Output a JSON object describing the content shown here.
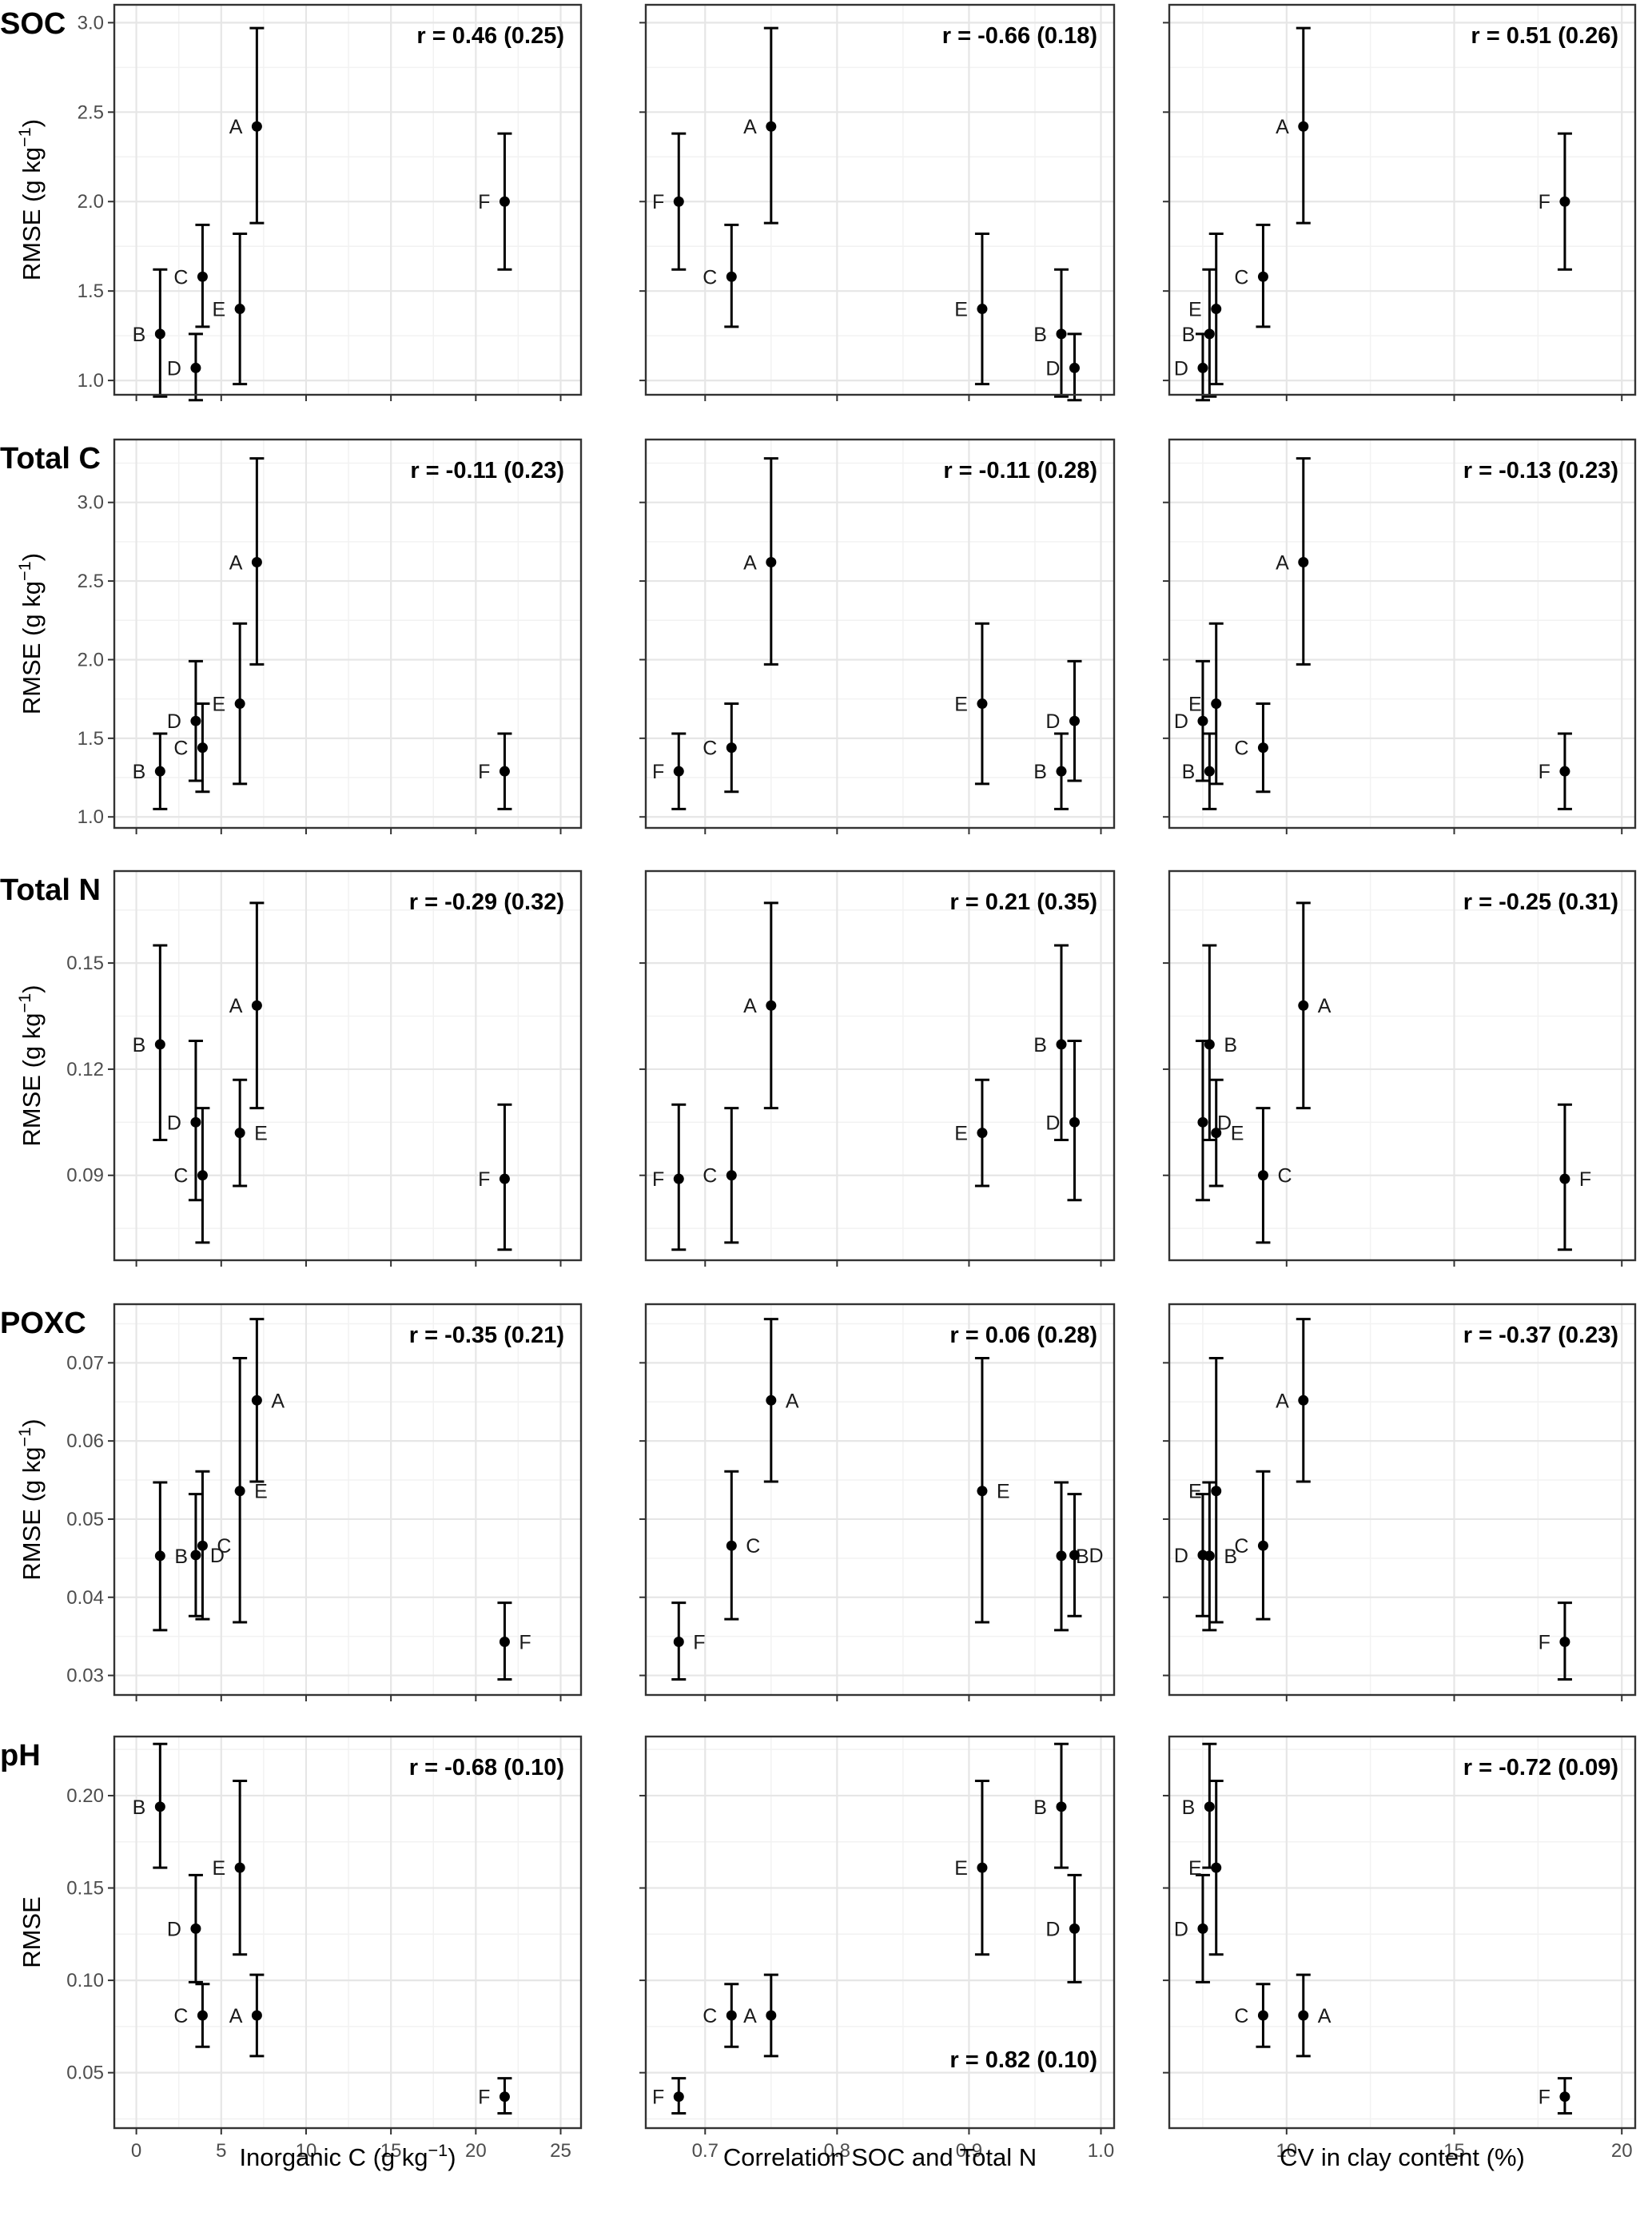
{
  "chart_data": {
    "type": "scatter",
    "rows": [
      {
        "label": "SOC",
        "ylabel": "RMSE (g kg-1)",
        "ylim": [
          0.92,
          3.1
        ],
        "yticks": [
          1.0,
          1.5,
          2.0,
          2.5,
          3.0
        ],
        "ytick_labels": [
          "1.0",
          "1.5",
          "2.0",
          "2.5",
          "3.0"
        ],
        "points": [
          {
            "id": "A",
            "y": 2.42,
            "lo": 1.88,
            "hi": 2.97
          },
          {
            "id": "B",
            "y": 1.26,
            "lo": 0.91,
            "hi": 1.62
          },
          {
            "id": "C",
            "y": 1.58,
            "lo": 1.3,
            "hi": 1.87
          },
          {
            "id": "D",
            "y": 1.07,
            "lo": 0.89,
            "hi": 1.26
          },
          {
            "id": "E",
            "y": 1.4,
            "lo": 0.98,
            "hi": 1.82
          },
          {
            "id": "F",
            "y": 2.0,
            "lo": 1.62,
            "hi": 2.38
          }
        ],
        "panels": [
          {
            "r": "r = 0.46 (0.25)",
            "r_pos": "top"
          },
          {
            "r": "r = -0.66 (0.18)",
            "r_pos": "top"
          },
          {
            "r": "r = 0.51 (0.26)",
            "r_pos": "top"
          }
        ]
      },
      {
        "label": "Total C",
        "ylabel": "RMSE (g kg-1)",
        "ylim": [
          0.93,
          3.4
        ],
        "yticks": [
          1.0,
          1.5,
          2.0,
          2.5,
          3.0
        ],
        "ytick_labels": [
          "1.0",
          "1.5",
          "2.0",
          "2.5",
          "3.0"
        ],
        "points": [
          {
            "id": "A",
            "y": 2.62,
            "lo": 1.97,
            "hi": 3.28
          },
          {
            "id": "B",
            "y": 1.29,
            "lo": 1.05,
            "hi": 1.53
          },
          {
            "id": "C",
            "y": 1.44,
            "lo": 1.16,
            "hi": 1.72
          },
          {
            "id": "D",
            "y": 1.61,
            "lo": 1.23,
            "hi": 1.99
          },
          {
            "id": "E",
            "y": 1.72,
            "lo": 1.21,
            "hi": 2.23
          },
          {
            "id": "F",
            "y": 1.29,
            "lo": 1.05,
            "hi": 1.53
          }
        ],
        "panels": [
          {
            "r": "r = -0.11 (0.23)",
            "r_pos": "top"
          },
          {
            "r": "r = -0.11 (0.28)",
            "r_pos": "top"
          },
          {
            "r": "r = -0.13 (0.23)",
            "r_pos": "top"
          }
        ]
      },
      {
        "label": "Total N",
        "ylabel": "RMSE (g kg-1)",
        "ylim": [
          0.066,
          0.176
        ],
        "yticks": [
          0.09,
          0.12,
          0.15
        ],
        "ytick_labels": [
          "0.09",
          "0.12",
          "0.15"
        ],
        "points": [
          {
            "id": "A",
            "y": 0.138,
            "lo": 0.109,
            "hi": 0.167
          },
          {
            "id": "B",
            "y": 0.127,
            "lo": 0.1,
            "hi": 0.155
          },
          {
            "id": "C",
            "y": 0.09,
            "lo": 0.071,
            "hi": 0.109
          },
          {
            "id": "D",
            "y": 0.105,
            "lo": 0.083,
            "hi": 0.128
          },
          {
            "id": "E",
            "y": 0.102,
            "lo": 0.087,
            "hi": 0.117
          },
          {
            "id": "F",
            "y": 0.089,
            "lo": 0.069,
            "hi": 0.11
          }
        ],
        "panels": [
          {
            "r": "r = -0.29 (0.32)",
            "r_pos": "top"
          },
          {
            "r": "r = 0.21 (0.35)",
            "r_pos": "top"
          },
          {
            "r": "r = -0.25 (0.31)",
            "r_pos": "top"
          }
        ]
      },
      {
        "label": "POXC",
        "ylabel": "RMSE (g kg-1)",
        "ylim": [
          0.0275,
          0.0775
        ],
        "yticks": [
          0.03,
          0.04,
          0.05,
          0.06,
          0.07
        ],
        "ytick_labels": [
          "0.03",
          "0.04",
          "0.05",
          "0.06",
          "0.07"
        ],
        "points": [
          {
            "id": "A",
            "y": 0.0652,
            "lo": 0.0548,
            "hi": 0.0756
          },
          {
            "id": "B",
            "y": 0.0453,
            "lo": 0.0358,
            "hi": 0.0547
          },
          {
            "id": "C",
            "y": 0.0466,
            "lo": 0.0372,
            "hi": 0.0561
          },
          {
            "id": "D",
            "y": 0.0454,
            "lo": 0.0376,
            "hi": 0.0532
          },
          {
            "id": "E",
            "y": 0.0536,
            "lo": 0.0368,
            "hi": 0.0706
          },
          {
            "id": "F",
            "y": 0.0343,
            "lo": 0.0295,
            "hi": 0.0393
          }
        ],
        "panels": [
          {
            "r": "r = -0.35 (0.21)",
            "r_pos": "top"
          },
          {
            "r": "r = 0.06 (0.28)",
            "r_pos": "top"
          },
          {
            "r": "r = -0.37 (0.23)",
            "r_pos": "top"
          }
        ]
      },
      {
        "label": "pH",
        "ylabel": "RMSE",
        "ylim": [
          0.02,
          0.232
        ],
        "yticks": [
          0.05,
          0.1,
          0.15,
          0.2
        ],
        "ytick_labels": [
          "0.05",
          "0.10",
          "0.15",
          "0.20"
        ],
        "points": [
          {
            "id": "A",
            "y": 0.081,
            "lo": 0.059,
            "hi": 0.103
          },
          {
            "id": "B",
            "y": 0.194,
            "lo": 0.161,
            "hi": 0.228
          },
          {
            "id": "C",
            "y": 0.081,
            "lo": 0.064,
            "hi": 0.098
          },
          {
            "id": "D",
            "y": 0.128,
            "lo": 0.099,
            "hi": 0.157
          },
          {
            "id": "E",
            "y": 0.161,
            "lo": 0.114,
            "hi": 0.208
          },
          {
            "id": "F",
            "y": 0.037,
            "lo": 0.028,
            "hi": 0.047
          }
        ],
        "panels": [
          {
            "r": "r = -0.68 (0.10)",
            "r_pos": "top"
          },
          {
            "r": "r = 0.82 (0.10)",
            "r_pos": "bottom"
          },
          {
            "r": "r = -0.72 (0.09)",
            "r_pos": "top"
          }
        ]
      }
    ],
    "columns": [
      {
        "xlabel": "Inorganic C (g kg-1)",
        "xlim": [
          -1.3,
          26.2
        ],
        "xticks": [
          0,
          5,
          10,
          15,
          20,
          25
        ],
        "xtick_labels": [
          "0",
          "5",
          "10",
          "15",
          "20",
          "25"
        ],
        "x": {
          "A": 7.1,
          "B": 1.4,
          "C": 3.9,
          "D": 3.5,
          "E": 6.1,
          "F": 21.7
        }
      },
      {
        "xlabel": "Correlation SOC and Total N",
        "xlim": [
          0.655,
          1.01
        ],
        "xticks": [
          0.7,
          0.8,
          0.9,
          1.0
        ],
        "xtick_labels": [
          "0.7",
          "0.8",
          "0.9",
          "1.0"
        ],
        "x": {
          "A": 0.75,
          "B": 0.97,
          "C": 0.72,
          "D": 0.98,
          "E": 0.91,
          "F": 0.68
        }
      },
      {
        "xlabel": "CV in clay content (%)",
        "xlim": [
          6.5,
          20.4
        ],
        "xticks": [
          10,
          15,
          20
        ],
        "xtick_labels": [
          "10",
          "15",
          "20"
        ],
        "x": {
          "A": 10.5,
          "B": 7.7,
          "C": 9.3,
          "D": 7.5,
          "E": 7.9,
          "F": 18.3
        }
      }
    ],
    "labels": {
      "SOC": {
        "0": {
          "A": "l",
          "B": "l",
          "C": "l",
          "D": "l",
          "E": "l",
          "F": "l"
        },
        "1": {
          "A": "l",
          "B": "l",
          "C": "l",
          "D": "l",
          "E": "l",
          "F": "l"
        },
        "2": {
          "A": "l",
          "B": "l",
          "C": "l",
          "D": "l",
          "E": "l",
          "F": "l"
        }
      },
      "Total C": {
        "0": {
          "A": "l",
          "B": "l",
          "C": "l",
          "D": "l",
          "E": "l",
          "F": "l"
        },
        "1": {
          "A": "l",
          "B": "l",
          "C": "l",
          "D": "l",
          "E": "l",
          "F": "l"
        },
        "2": {
          "A": "l",
          "B": "l",
          "C": "l",
          "D": "l",
          "E": "l",
          "F": "l"
        }
      },
      "Total N": {
        "0": {
          "A": "l",
          "B": "l",
          "C": "l",
          "D": "l",
          "E": "r",
          "F": "l"
        },
        "1": {
          "A": "l",
          "B": "l",
          "C": "l",
          "D": "l",
          "E": "l",
          "F": "l"
        },
        "2": {
          "A": "r",
          "B": "r",
          "C": "r",
          "D": "r",
          "E": "r",
          "F": "r"
        }
      },
      "POXC": {
        "0": {
          "A": "r",
          "B": "r",
          "C": "r",
          "D": "r",
          "E": "r",
          "F": "r"
        },
        "1": {
          "A": "r",
          "B": "r",
          "C": "r",
          "D": "r",
          "E": "r",
          "F": "r"
        },
        "2": {
          "A": "l",
          "B": "r",
          "C": "l",
          "D": "l",
          "E": "l",
          "F": "l"
        }
      },
      "pH": {
        "0": {
          "A": "l",
          "B": "l",
          "C": "l",
          "D": "l",
          "E": "l",
          "F": "l"
        },
        "1": {
          "A": "l",
          "B": "l",
          "C": "l",
          "D": "l",
          "E": "l",
          "F": "l"
        },
        "2": {
          "A": "r",
          "B": "l",
          "C": "l",
          "D": "l",
          "E": "l",
          "F": "l"
        }
      }
    },
    "grid": true
  }
}
